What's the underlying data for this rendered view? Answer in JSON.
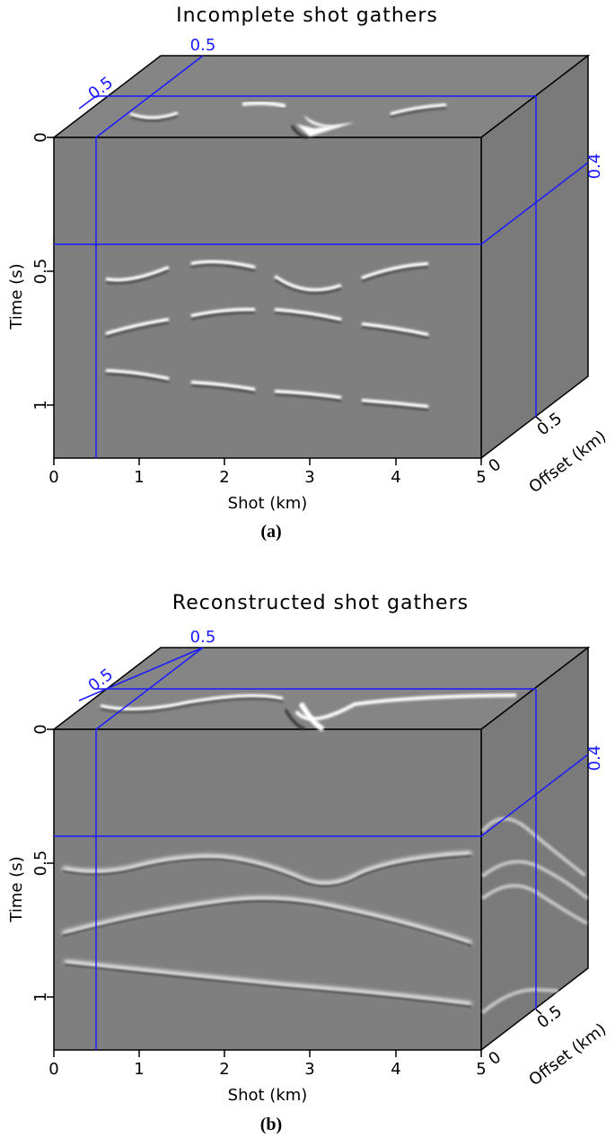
{
  "panels": [
    {
      "id": "a",
      "title": "Incomplete shot gathers",
      "caption": "(a)",
      "x_label": "Shot (km)",
      "y_label": "Time (s)",
      "z_label": "Offset (km)",
      "x_ticks": [
        "0",
        "1",
        "2",
        "3",
        "4",
        "5"
      ],
      "y_ticks": [
        "0",
        "0.5",
        "1"
      ],
      "z_tick": "0.5",
      "z_end": "0",
      "slice_labels": {
        "top_left": "0.5",
        "top_center": "0.5",
        "right": "0.4"
      },
      "mode": "incomplete"
    },
    {
      "id": "b",
      "title": "Reconstructed shot gathers",
      "caption": "(b)",
      "x_label": "Shot (km)",
      "y_label": "Time (s)",
      "z_label": "Offset (km)",
      "x_ticks": [
        "0",
        "1",
        "2",
        "3",
        "4",
        "5"
      ],
      "y_ticks": [
        "0",
        "0.5",
        "1"
      ],
      "z_tick": "0.5",
      "z_end": "0",
      "slice_labels": {
        "top_left": "0.5",
        "top_center": "0.5",
        "right": "0.4"
      },
      "mode": "reconstructed"
    }
  ],
  "colors": {
    "background": "#7f7f7f",
    "side": "#7a7a7a",
    "top": "#858585",
    "slice_line": "#1a1aff",
    "label_blue": "#1a1aff",
    "event_bright": "#ffffff",
    "event_dark": "#2a2a2a"
  }
}
